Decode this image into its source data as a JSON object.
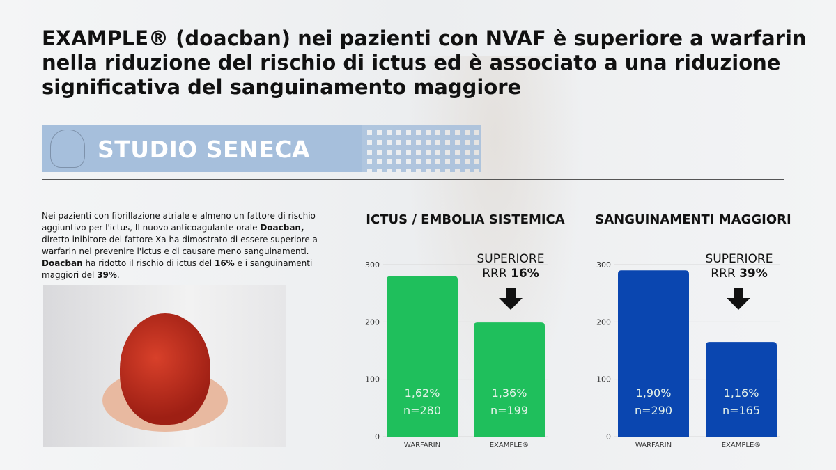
{
  "title": {
    "bold": "EXAMPLE® (doacban)",
    "rest": " nei pazienti con NVAF è superiore a warfarin nella riduzione del rischio di ictus ed è associato a una riduzione significativa del sanguinamento maggiore"
  },
  "banner": {
    "label": "STUDIO SENECA"
  },
  "intro": {
    "p1": "Nei pazienti con fibrillazione atriale e almeno un fattore di rischio aggiuntivo per l'ictus, Il nuovo anticoagulante orale ",
    "b1": "Doacban,",
    "p2": " diretto inibitore del fattore Xa ha dimostrato di essere superiore a warfarin nel prevenire l'ictus e di causare meno sanguinamenti. ",
    "b2": "Doacban",
    "p3": " ha ridotto il rischio di ictus del ",
    "b3": "16%",
    "p4": " e i sanguinamenti maggiori del ",
    "b4": "39%",
    "p5": "."
  },
  "chart_data": [
    {
      "type": "bar",
      "title": "ICTUS / EMBOLIA SISTEMICA",
      "categories": [
        "WARFARIN",
        "EXAMPLE®"
      ],
      "values": [
        280,
        199
      ],
      "data_labels": [
        [
          "1,62%",
          "n=280"
        ],
        [
          "1,36%",
          "n=199"
        ]
      ],
      "ylim": [
        0,
        300
      ],
      "yticks": [
        "0",
        "100",
        "200",
        "300"
      ],
      "grid": true,
      "color": "#1fbf5c",
      "annotation": {
        "line1": "SUPERIORE",
        "line2": "RRR ",
        "bold": "16%"
      }
    },
    {
      "type": "bar",
      "title": "SANGUINAMENTI MAGGIORI",
      "categories": [
        "WARFARIN",
        "EXAMPLE®"
      ],
      "values": [
        290,
        165
      ],
      "data_labels": [
        [
          "1,90%",
          "n=290"
        ],
        [
          "1,16%",
          "n=165"
        ]
      ],
      "ylim": [
        0,
        300
      ],
      "yticks": [
        "0",
        "100",
        "200",
        "300"
      ],
      "grid": true,
      "color": "#0a46b0",
      "annotation": {
        "line1": "SUPERIORE",
        "line2": "RRR ",
        "bold": "39%"
      }
    }
  ]
}
